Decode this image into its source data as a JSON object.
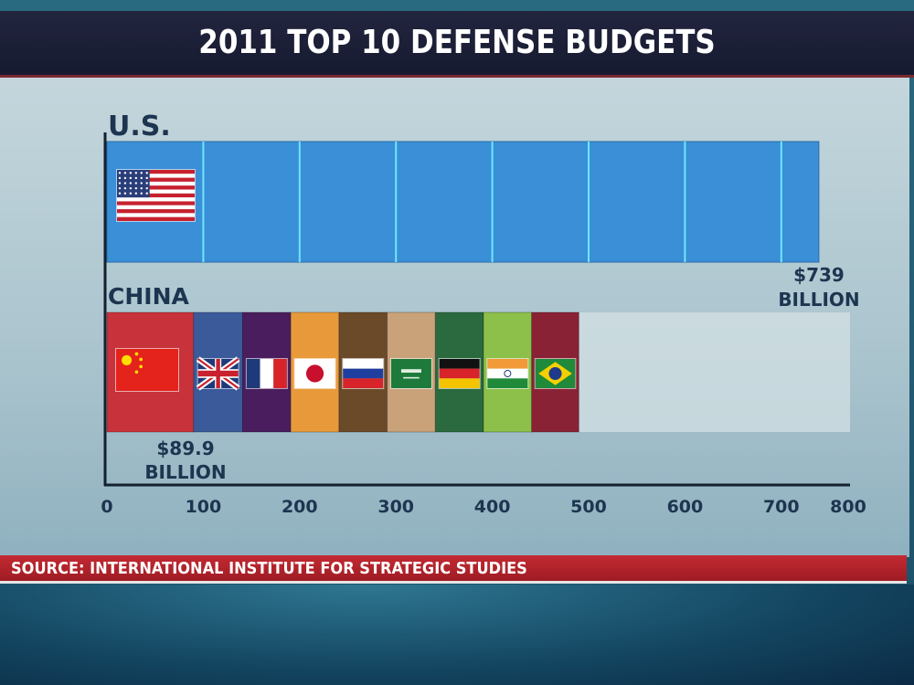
{
  "title": "2011 TOP 10 DEFENSE BUDGETS",
  "source": "SOURCE: INTERNATIONAL INSTITUTE FOR STRATEGIC STUDIES",
  "chart_data": {
    "type": "bar",
    "orientation": "horizontal",
    "title": "2011 TOP 10 DEFENSE BUDGETS",
    "unit": "billion USD",
    "xlim": [
      0,
      800
    ],
    "xticks": [
      "0",
      "100",
      "200",
      "300",
      "400",
      "500",
      "600",
      "700",
      "800"
    ],
    "grid": false,
    "bars": [
      {
        "label": "U.S.",
        "value": 739,
        "value_label": [
          "$739",
          "BILLION"
        ],
        "color": "#3a8fd6",
        "flag": "us-flag"
      },
      {
        "label": "CHINA",
        "stacked": true,
        "segments": [
          {
            "country": "China",
            "value": 89.9,
            "color": "#c8323a",
            "flag": "china-flag"
          },
          {
            "country": "United Kingdom",
            "value": 51,
            "color": "#3b5a9a",
            "flag": "uk-flag"
          },
          {
            "country": "France",
            "value": 50,
            "color": "#4a1e5e",
            "flag": "france-flag"
          },
          {
            "country": "Japan",
            "value": 50,
            "color": "#e89a3a",
            "flag": "japan-flag"
          },
          {
            "country": "Russia",
            "value": 50,
            "color": "#6b4a2a",
            "flag": "russia-flag"
          },
          {
            "country": "Saudi Arabia",
            "value": 50,
            "color": "#c9a27a",
            "flag": "saudi-flag"
          },
          {
            "country": "Germany",
            "value": 50,
            "color": "#2a6a3e",
            "flag": "germany-flag"
          },
          {
            "country": "India",
            "value": 50,
            "color": "#8cc04a",
            "flag": "india-flag"
          },
          {
            "country": "Brazil",
            "value": 49,
            "color": "#8a2236",
            "flag": "brazil-flag"
          }
        ],
        "value_label": [
          "$89.9",
          "BILLION"
        ]
      }
    ]
  }
}
